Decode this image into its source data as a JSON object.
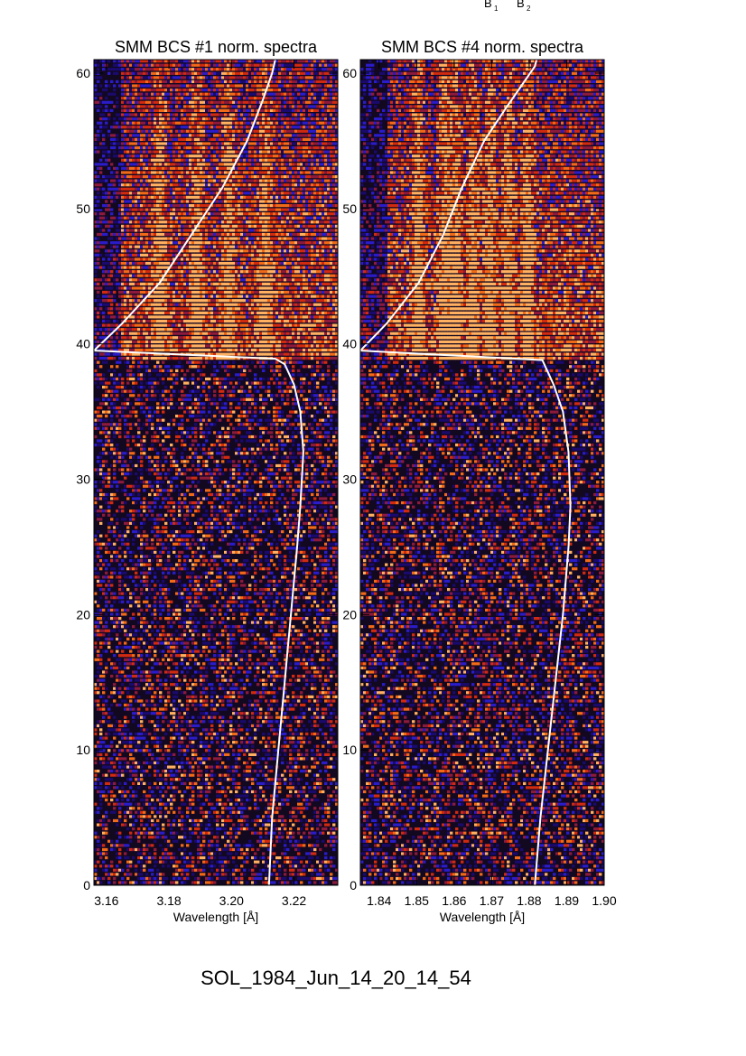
{
  "header_labels": {
    "b1": "B",
    "b1_sub": "1",
    "b2": "B",
    "b2_sub": "2"
  },
  "footer_title": "SOL_1984_Jun_14_20_14_54",
  "chart_data": [
    {
      "type": "heatmap",
      "title": "SMM BCS #1 norm. spectra",
      "xlabel": "Wavelength [Å]",
      "ylabel": "",
      "xlim": [
        3.156,
        3.234
      ],
      "ylim": [
        0,
        61
      ],
      "xticks": [
        "3.16",
        "3.18",
        "3.20",
        "3.22"
      ],
      "xtick_values": [
        3.16,
        3.18,
        3.2,
        3.22
      ],
      "yticks": [
        "0",
        "10",
        "20",
        "30",
        "40",
        "50",
        "60"
      ],
      "ytick_values": [
        0,
        10,
        20,
        30,
        40,
        50,
        60
      ],
      "flare_start_y": 39,
      "emission_lines_x": [
        3.177,
        3.189,
        3.199,
        3.211
      ],
      "colormap": [
        "#000000",
        "#1a0a6e",
        "#2a1cc8",
        "#8c1a3c",
        "#d02a10",
        "#f06a18",
        "#ffb060"
      ],
      "light_curve": {
        "color": "#ffffff",
        "x": [
          3.212,
          3.213,
          3.215,
          3.217,
          3.219,
          3.221,
          3.222,
          3.223,
          3.222,
          3.22,
          3.217,
          3.214,
          3.156,
          3.165,
          3.177,
          3.187,
          3.197,
          3.205,
          3.21,
          3.213,
          3.214
        ],
        "y": [
          0,
          5,
          10,
          15,
          20,
          25,
          28,
          32,
          35,
          37,
          38.5,
          38.9,
          39.5,
          41.5,
          44.5,
          48,
          51.5,
          55,
          58,
          60,
          61
        ]
      }
    },
    {
      "type": "heatmap",
      "title": "SMM BCS #4 norm. spectra",
      "xlabel": "Wavelength [Å]",
      "ylabel": "",
      "xlim": [
        1.835,
        1.9
      ],
      "ylim": [
        0,
        61
      ],
      "xticks": [
        "1.84",
        "1.85",
        "1.86",
        "1.87",
        "1.88",
        "1.89",
        "1.90"
      ],
      "xtick_values": [
        1.84,
        1.85,
        1.86,
        1.87,
        1.88,
        1.89,
        1.9
      ],
      "yticks": [
        "0",
        "10",
        "20",
        "30",
        "40",
        "50",
        "60"
      ],
      "ytick_values": [
        0,
        10,
        20,
        30,
        40,
        50,
        60
      ],
      "flare_start_y": 39,
      "emission_lines_x": [
        1.8505,
        1.8575,
        1.8605,
        1.865,
        1.8695,
        1.8745,
        1.8795
      ],
      "colormap": [
        "#000000",
        "#1a0a6e",
        "#2a1cc8",
        "#8c1a3c",
        "#d02a10",
        "#f06a18",
        "#ffb060"
      ],
      "light_curve": {
        "color": "#ffffff",
        "x": [
          1.8815,
          1.883,
          1.885,
          1.887,
          1.889,
          1.8905,
          1.891,
          1.8905,
          1.889,
          1.8865,
          1.8835,
          1.835,
          1.842,
          1.8505,
          1.857,
          1.862,
          1.868,
          1.874,
          1.879,
          1.8815,
          1.882
        ],
        "y": [
          0,
          5,
          10,
          15,
          20,
          25,
          28,
          32,
          35,
          37,
          38.8,
          39.5,
          41.5,
          44.5,
          48,
          51.5,
          55,
          57.5,
          59.5,
          60.5,
          61
        ]
      }
    }
  ]
}
